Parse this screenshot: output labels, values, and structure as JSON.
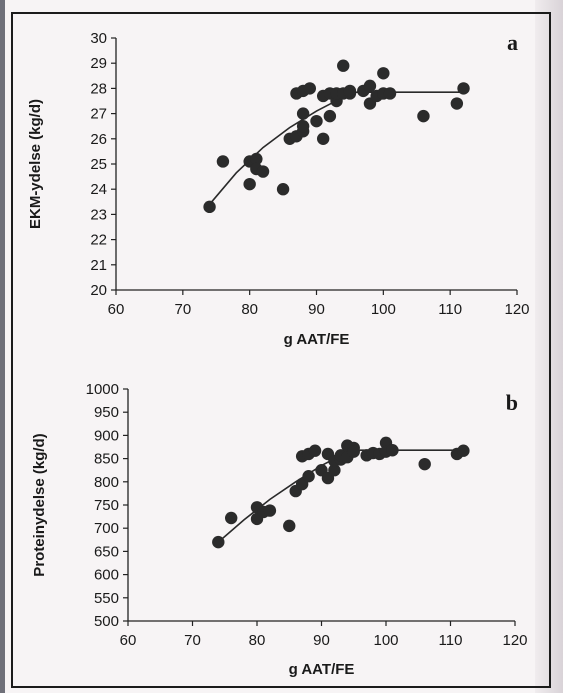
{
  "chart_data": [
    {
      "type": "scatter",
      "panel_label": "a",
      "xlabel": "g AAT/FE",
      "ylabel": "EKM-ydelse (kg/d)",
      "xlim": [
        60,
        120
      ],
      "ylim": [
        20,
        30
      ],
      "xticks": [
        60,
        70,
        80,
        90,
        100,
        110,
        120
      ],
      "yticks": [
        20,
        21,
        22,
        23,
        24,
        25,
        26,
        27,
        28,
        29,
        30
      ],
      "grid": false,
      "points": [
        [
          74,
          23.3
        ],
        [
          76,
          25.1
        ],
        [
          80,
          25.1
        ],
        [
          80,
          24.2
        ],
        [
          81,
          25.2
        ],
        [
          81,
          24.8
        ],
        [
          82,
          24.7
        ],
        [
          85,
          24.0
        ],
        [
          86,
          26.0
        ],
        [
          87,
          26.1
        ],
        [
          87,
          27.8
        ],
        [
          88,
          26.3
        ],
        [
          88,
          26.5
        ],
        [
          88,
          27.0
        ],
        [
          88,
          27.9
        ],
        [
          89,
          28.0
        ],
        [
          90,
          26.7
        ],
        [
          91,
          26.0
        ],
        [
          91,
          27.7
        ],
        [
          92,
          27.8
        ],
        [
          92,
          26.9
        ],
        [
          93,
          27.5
        ],
        [
          93,
          27.8
        ],
        [
          94,
          28.9
        ],
        [
          94,
          27.8
        ],
        [
          95,
          27.8
        ],
        [
          95,
          27.9
        ],
        [
          97,
          27.9
        ],
        [
          98,
          28.1
        ],
        [
          98,
          27.4
        ],
        [
          99,
          27.7
        ],
        [
          100,
          28.6
        ],
        [
          100,
          27.8
        ],
        [
          101,
          27.8
        ],
        [
          106,
          26.9
        ],
        [
          111,
          27.4
        ],
        [
          112,
          28.0
        ]
      ],
      "fit_line": [
        [
          74,
          23.4
        ],
        [
          78,
          24.65
        ],
        [
          82,
          25.65
        ],
        [
          86,
          26.45
        ],
        [
          90,
          27.1
        ],
        [
          94,
          27.65
        ],
        [
          96,
          27.85
        ],
        [
          112,
          27.85
        ]
      ]
    },
    {
      "type": "scatter",
      "panel_label": "b",
      "xlabel": "g AAT/FE",
      "ylabel": "Proteinydelse (kg/d)",
      "xlim": [
        60,
        120
      ],
      "ylim": [
        500,
        1000
      ],
      "xticks": [
        60,
        70,
        80,
        90,
        100,
        110,
        120
      ],
      "yticks": [
        500,
        550,
        600,
        650,
        700,
        750,
        800,
        850,
        900,
        950,
        1000
      ],
      "grid": false,
      "points": [
        [
          74,
          670
        ],
        [
          76,
          722
        ],
        [
          80,
          720
        ],
        [
          80,
          745
        ],
        [
          81,
          735
        ],
        [
          82,
          738
        ],
        [
          85,
          705
        ],
        [
          86,
          780
        ],
        [
          87,
          795
        ],
        [
          87,
          855
        ],
        [
          88,
          812
        ],
        [
          88,
          860
        ],
        [
          89,
          867
        ],
        [
          90,
          825
        ],
        [
          91,
          808
        ],
        [
          91,
          860
        ],
        [
          92,
          825
        ],
        [
          92,
          845
        ],
        [
          93,
          848
        ],
        [
          93,
          857
        ],
        [
          94,
          878
        ],
        [
          94,
          853
        ],
        [
          95,
          873
        ],
        [
          95,
          865
        ],
        [
          97,
          857
        ],
        [
          98,
          862
        ],
        [
          99,
          860
        ],
        [
          100,
          884
        ],
        [
          100,
          865
        ],
        [
          101,
          868
        ],
        [
          106,
          838
        ],
        [
          111,
          860
        ],
        [
          112,
          867
        ]
      ],
      "fit_line": [
        [
          74,
          670
        ],
        [
          78,
          718
        ],
        [
          82,
          762
        ],
        [
          86,
          800
        ],
        [
          90,
          835
        ],
        [
          93,
          857
        ],
        [
          96,
          868
        ],
        [
          112,
          868
        ]
      ]
    }
  ]
}
